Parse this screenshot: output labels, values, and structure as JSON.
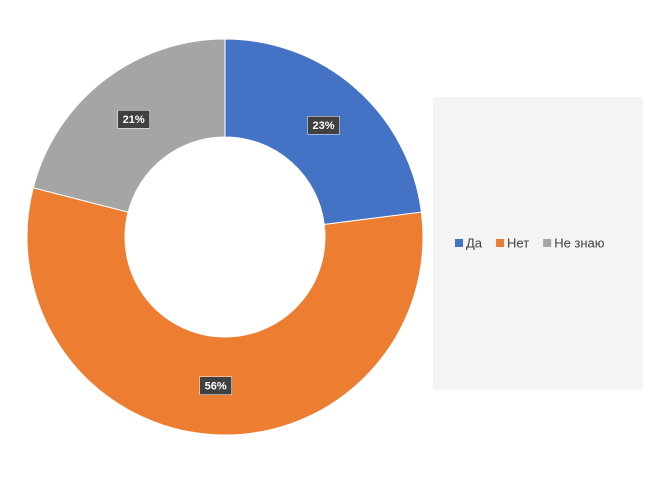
{
  "chart_data": {
    "type": "donut",
    "categories": [
      "Да",
      "Нет",
      "Не знаю"
    ],
    "values": [
      23,
      56,
      21
    ],
    "value_labels": [
      "23%",
      "56%",
      "21%"
    ],
    "colors": [
      "#4472c4",
      "#ed7d31",
      "#a5a5a5"
    ],
    "legend": "right"
  }
}
